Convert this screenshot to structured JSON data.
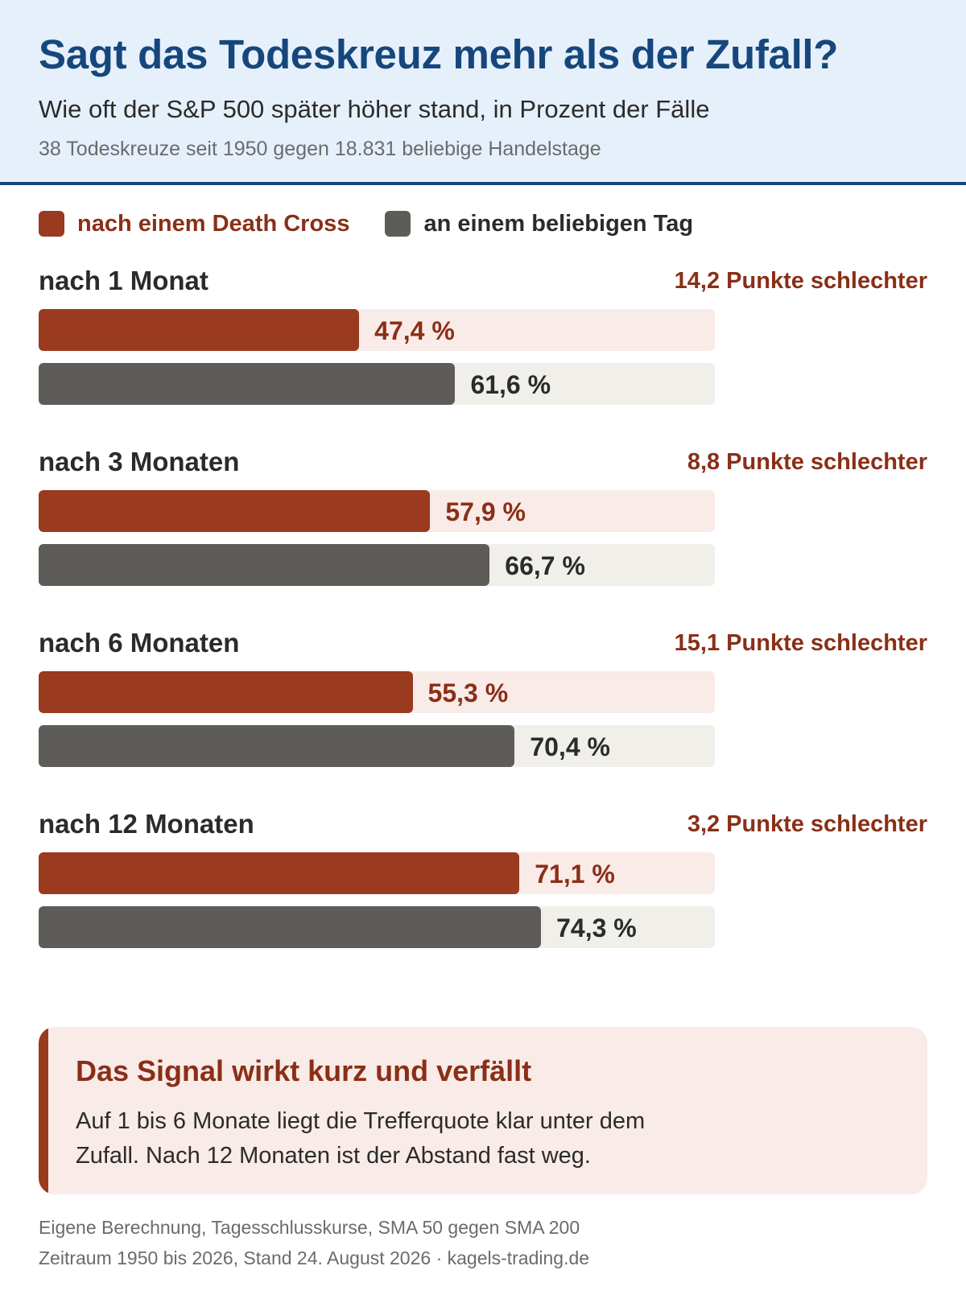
{
  "header": {
    "title": "Sagt das Todeskreuz mehr als der Zufall?",
    "subtitle": "Wie oft der S&P 500 später höher stand, in Prozent der Fälle",
    "subsubtitle": "38 Todeskreuze seit 1950 gegen 18.831 beliebige Handelstage"
  },
  "colors": {
    "title": "#16477c",
    "death_cross": "#9a3a1f",
    "death_cross_text": "#8a2f17",
    "random_day": "#5e5c59",
    "header_bg": "#e6f0fb"
  },
  "chart_data": {
    "type": "bar",
    "orientation": "horizontal",
    "xlim": [
      0,
      100
    ],
    "unit": "%",
    "legend_position": "top-left",
    "categories": [
      "nach 1 Monat",
      "nach 3 Monaten",
      "nach 6 Monaten",
      "nach 12 Monaten"
    ],
    "series": [
      {
        "name": "nach einem Death Cross",
        "values": [
          47.4,
          57.9,
          55.3,
          71.1
        ],
        "labels": [
          "47,4 %",
          "57,9 %",
          "55,3 %",
          "71,1 %"
        ]
      },
      {
        "name": "an einem beliebigen Tag",
        "values": [
          61.6,
          66.7,
          70.4,
          74.3
        ],
        "labels": [
          "61,6 %",
          "66,7 %",
          "70,4 %",
          "74,3 %"
        ]
      }
    ],
    "differences": [
      "14,2 Punkte schlechter",
      "8,8 Punkte schlechter",
      "15,1 Punkte schlechter",
      "3,2 Punkte schlechter"
    ]
  },
  "note": {
    "title": "Das Signal wirkt kurz und verfällt",
    "text": "Auf 1 bis 6 Monate liegt die Trefferquote klar unter dem Zufall. Nach 12 Monaten ist der Abstand fast weg."
  },
  "footer": {
    "line1": "Eigene Berechnung, Tagesschlusskurse, SMA 50 gegen SMA 200",
    "line2": "Zeitraum 1950 bis 2026, Stand 24. August 2026 · kagels-trading.de"
  }
}
